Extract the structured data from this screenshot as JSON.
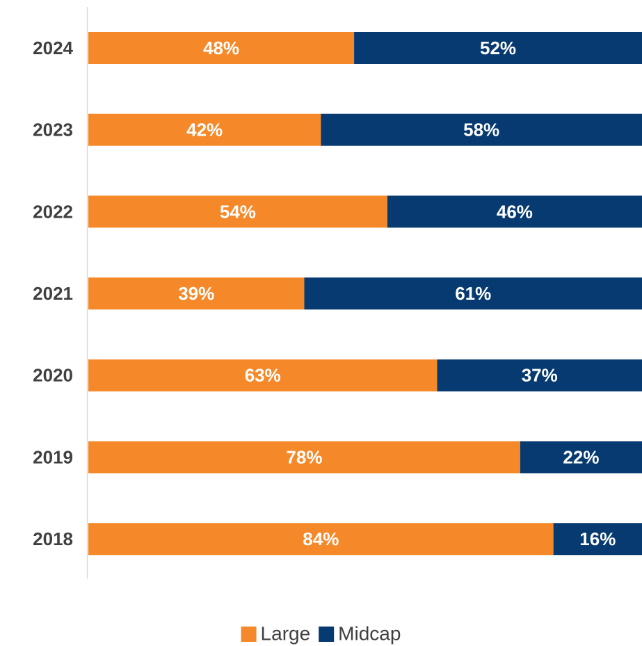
{
  "chart_data": {
    "type": "stacked-bar-horizontal",
    "categories": [
      "2024",
      "2023",
      "2022",
      "2021",
      "2020",
      "2019",
      "2018"
    ],
    "series": [
      {
        "name": "Large",
        "color": "#f5892a",
        "values": [
          48,
          42,
          54,
          39,
          63,
          78,
          84
        ],
        "value_labels": [
          "48%",
          "42%",
          "54%",
          "39%",
          "63%",
          "78%",
          "84%"
        ]
      },
      {
        "name": "Midcap",
        "color": "#063a70",
        "values": [
          52,
          58,
          46,
          61,
          37,
          22,
          16
        ],
        "value_labels": [
          "52%",
          "58%",
          "46%",
          "61%",
          "37%",
          "22%",
          "16%"
        ]
      }
    ],
    "xlim": [
      0,
      100
    ],
    "legend": "bottom"
  }
}
